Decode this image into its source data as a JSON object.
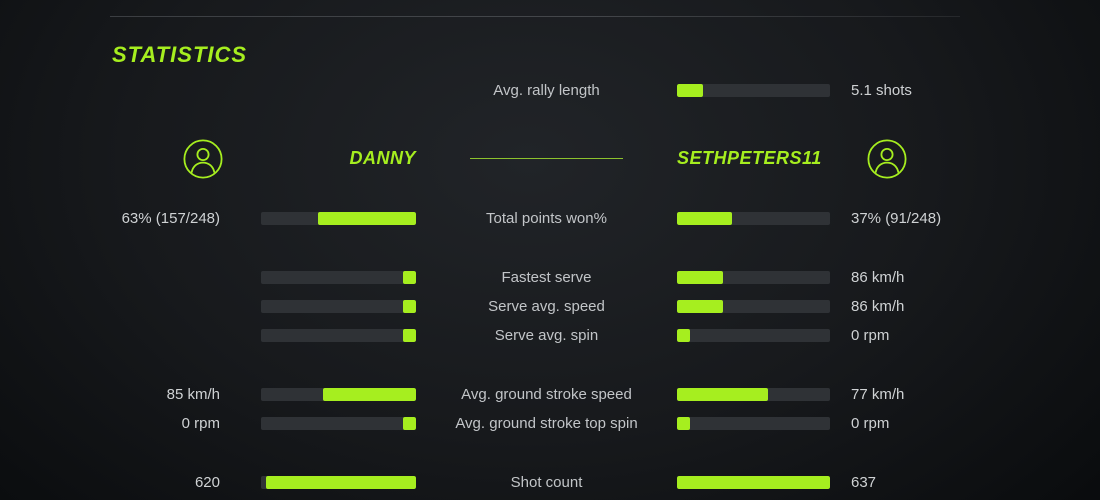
{
  "colors": {
    "accent": "#a6ee1f",
    "bar_track": "#2f3236",
    "label_text": "#c2c5c8",
    "value_text": "#cfd2d4",
    "top_line": "#3b3e42",
    "background": "#17191c"
  },
  "header": {
    "title": "STATISTICS"
  },
  "players": {
    "left": {
      "name": "DANNY"
    },
    "right": {
      "name": "SETHPETERS11"
    }
  },
  "rally": {
    "label": "Avg. rally length",
    "value": "5.1 shots",
    "fill": 0.17
  },
  "rows": [
    {
      "label": "Total points won%",
      "left": {
        "value": "63% (157/248)",
        "fill": 0.635
      },
      "right": {
        "value": "37% (91/248)",
        "fill": 0.36
      }
    },
    {
      "label": "Fastest serve",
      "left": {
        "value": "",
        "fill": 0.085
      },
      "right": {
        "value": "86 km/h",
        "fill": 0.3
      }
    },
    {
      "label": "Serve avg. speed",
      "left": {
        "value": "",
        "fill": 0.085
      },
      "right": {
        "value": "86 km/h",
        "fill": 0.3
      }
    },
    {
      "label": "Serve avg. spin",
      "left": {
        "value": "",
        "fill": 0.085
      },
      "right": {
        "value": "0 rpm",
        "fill": 0.085
      }
    },
    {
      "label": "Avg. ground stroke speed",
      "left": {
        "value": "85 km/h",
        "fill": 0.6
      },
      "right": {
        "value": "77 km/h",
        "fill": 0.595
      }
    },
    {
      "label": "Avg. ground stroke top spin",
      "left": {
        "value": "0 rpm",
        "fill": 0.085
      },
      "right": {
        "value": "0 rpm",
        "fill": 0.085
      }
    },
    {
      "label": "Shot count",
      "left": {
        "value": "620",
        "fill": 0.97
      },
      "right": {
        "value": "637",
        "fill": 1.0
      }
    }
  ]
}
